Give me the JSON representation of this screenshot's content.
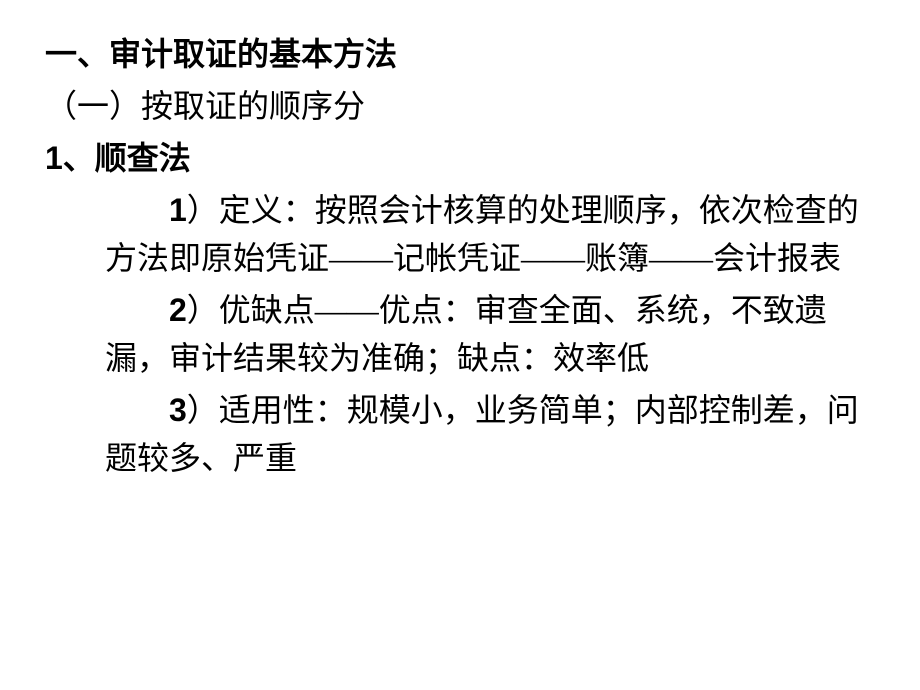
{
  "heading1": "一、审计取证的基本方法",
  "heading2": "（一）按取证的顺序分",
  "heading3_num": "1",
  "heading3_text": "、顺查法",
  "item1_num": "1",
  "item1_text": "）定义：按照会计核算的处理顺序，依次检查的方法即原始凭证——记帐凭证——账簿——会计报表",
  "item2_num": "2",
  "item2_text": "）优缺点——优点：审查全面、系统，不致遗漏，审计结果较为准确；缺点：效率低",
  "item3_num": "3",
  "item3_text": "）适用性：规模小，业务简单；内部控制差，问题较多、严重",
  "colors": {
    "background": "#ffffff",
    "text": "#000000"
  },
  "typography": {
    "font_family": "SimSun",
    "font_size_pt": 24,
    "line_height": 1.5
  }
}
